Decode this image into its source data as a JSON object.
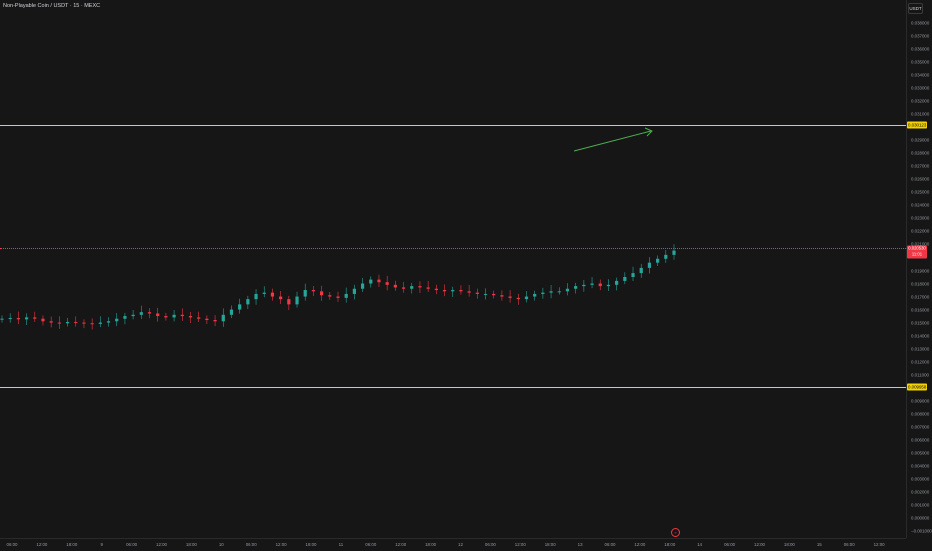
{
  "header": {
    "title": "Non-Playable Coin / USDT · 15 · MEXC"
  },
  "price_axis": {
    "unit": "USDT",
    "ticks": [
      "0.038000",
      "0.037000",
      "0.036000",
      "0.035000",
      "0.034000",
      "0.033000",
      "0.032000",
      "0.031000",
      "0.029000",
      "0.028000",
      "0.027000",
      "0.026000",
      "0.025000",
      "0.024000",
      "0.023000",
      "0.022000",
      "0.021000",
      "0.019000",
      "0.018000",
      "0.017000",
      "0.016000",
      "0.015000",
      "0.014000",
      "0.013000",
      "0.012000",
      "0.011000",
      "0.009000",
      "0.008000",
      "0.007000",
      "0.006000",
      "0.005000",
      "0.004000",
      "0.003000",
      "0.002000",
      "0.001000",
      "0.000000",
      "−0.001000"
    ],
    "tick_values": [
      0.038,
      0.037,
      0.036,
      0.035,
      0.034,
      0.033,
      0.032,
      0.031,
      0.029,
      0.028,
      0.027,
      0.026,
      0.025,
      0.024,
      0.023,
      0.022,
      0.021,
      0.019,
      0.018,
      0.017,
      0.016,
      0.015,
      0.014,
      0.013,
      0.012,
      0.011,
      0.009,
      0.008,
      0.007,
      0.006,
      0.005,
      0.004,
      0.003,
      0.002,
      0.001,
      0.0,
      -0.001
    ]
  },
  "levels": {
    "upper": {
      "label": "0.030123",
      "value": 0.030123,
      "color": "#f5d400"
    },
    "lower": {
      "label": "0.009958",
      "value": 0.009958,
      "color": "#f5d400"
    },
    "current": {
      "price": "0.020530",
      "countdown": "11:01",
      "value": 0.02053,
      "color": "#f23645"
    }
  },
  "time_axis": {
    "ticks": [
      "06:00",
      "12:00",
      "18:00",
      "9",
      "06:00",
      "12:00",
      "18:00",
      "10",
      "06:00",
      "12:00",
      "18:00",
      "11",
      "06:00",
      "12:00",
      "18:00",
      "12",
      "06:00",
      "12:00",
      "18:00",
      "13",
      "06:00",
      "12:00",
      "18:00",
      "14",
      "06:00",
      "12:00",
      "18:00",
      "15",
      "06:00",
      "12:00"
    ]
  },
  "chart_data": {
    "type": "candlestick",
    "series": [
      {
        "close": [
          0.0153,
          0.01535,
          0.01525,
          0.0154,
          0.0153,
          0.0151,
          0.015,
          0.01495,
          0.01505,
          0.015,
          0.01495,
          0.0149,
          0.015,
          0.0151,
          0.0153,
          0.0155,
          0.0156,
          0.0158,
          0.0157,
          0.0155,
          0.0154,
          0.0156,
          0.0155,
          0.0154,
          0.0153,
          0.0152,
          0.0151,
          0.0156,
          0.016,
          0.0164,
          0.0168,
          0.0172,
          0.0173,
          0.017,
          0.0168,
          0.0164,
          0.017,
          0.0175,
          0.0174,
          0.0171,
          0.017,
          0.0169,
          0.0172,
          0.0176,
          0.018,
          0.0183,
          0.0181,
          0.0179,
          0.0177,
          0.0176,
          0.0178,
          0.0177,
          0.0176,
          0.0175,
          0.0174,
          0.0175,
          0.0174,
          0.0173,
          0.0172,
          0.0172,
          0.0171,
          0.017,
          0.0169,
          0.0168,
          0.017,
          0.0172,
          0.0173,
          0.0174,
          0.0174,
          0.0176,
          0.0178,
          0.0179,
          0.018,
          0.0178,
          0.0179,
          0.0182,
          0.0185,
          0.0188,
          0.0192,
          0.0196,
          0.0199,
          0.0202,
          0.02053
        ]
      }
    ],
    "ylim": [
      -0.001,
      0.039
    ]
  },
  "colors": {
    "up": "#26a69a",
    "down": "#f23645",
    "arrow": "#4caf50",
    "background": "#161616"
  },
  "icons": {
    "arrow": "green-trend-arrow",
    "scroll_to_realtime": "scroll-to-realtime-icon"
  }
}
